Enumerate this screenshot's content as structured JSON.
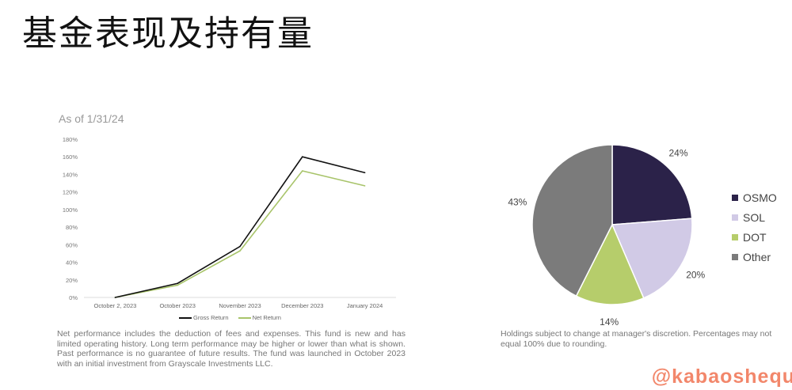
{
  "page_title": "基金表现及持有量",
  "chart_data": [
    {
      "type": "line",
      "title": "As of 1/31/24",
      "categories": [
        "October 2, 2023",
        "October 2023",
        "November 2023",
        "December 2023",
        "January 2024"
      ],
      "y_ticks": [
        "0%",
        "20%",
        "40%",
        "60%",
        "80%",
        "100%",
        "120%",
        "140%",
        "160%",
        "180%"
      ],
      "ylim": [
        0,
        180
      ],
      "grid": false,
      "legend_position": "bottom",
      "series": [
        {
          "name": "Gross Return",
          "color": "#111111",
          "values": [
            0,
            16,
            58,
            160,
            142
          ]
        },
        {
          "name": "Net Return",
          "color": "#a8c46a",
          "values": [
            0,
            14,
            53,
            144,
            127
          ]
        }
      ]
    },
    {
      "type": "pie",
      "legend_position": "right",
      "slices": [
        {
          "label": "OSMO",
          "value": 24,
          "display": "24%",
          "color": "#2b2249"
        },
        {
          "label": "SOL",
          "value": 20,
          "display": "20%",
          "color": "#d1cae6"
        },
        {
          "label": "DOT",
          "value": 14,
          "display": "14%",
          "color": "#b6cd6b"
        },
        {
          "label": "Other",
          "value": 43,
          "display": "43%",
          "color": "#7b7b7b"
        }
      ]
    }
  ],
  "notes": {
    "performance": "Net performance includes the deduction of fees and expenses. This fund is new and has limited operating history. Long term performance may be higher or lower than what is shown. Past performance is no guarantee of future results. The fund was launched in October 2023 with an initial investment from Grayscale Investments LLC.",
    "holdings": "Holdings subject to change at manager's discretion.  Percentages may not equal 100% due to rounding."
  },
  "watermark": "@kabaoshequ"
}
